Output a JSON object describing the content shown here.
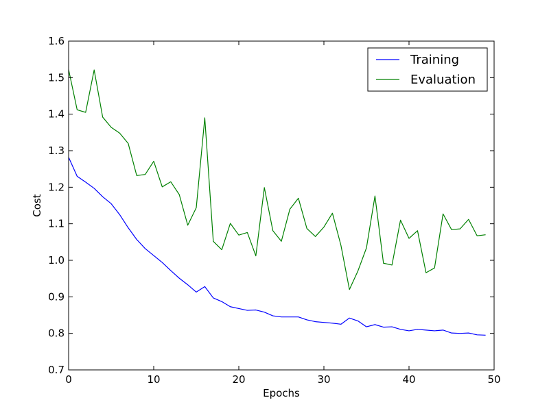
{
  "chart_data": {
    "type": "line",
    "title": "",
    "xlabel": "Epochs",
    "ylabel": "Cost",
    "xlim": [
      0,
      50
    ],
    "ylim": [
      0.7,
      1.6
    ],
    "xticks": [
      "0",
      "10",
      "20",
      "30",
      "40",
      "50"
    ],
    "yticks": [
      "0.7",
      "0.8",
      "0.9",
      "1.0",
      "1.1",
      "1.2",
      "1.3",
      "1.4",
      "1.5",
      "1.6"
    ],
    "grid": false,
    "legend_position": "top-right",
    "x": [
      0,
      1,
      2,
      3,
      4,
      5,
      6,
      7,
      8,
      9,
      10,
      11,
      12,
      13,
      14,
      15,
      16,
      17,
      18,
      19,
      20,
      21,
      22,
      23,
      24,
      25,
      26,
      27,
      28,
      29,
      30,
      31,
      32,
      33,
      34,
      35,
      36,
      37,
      38,
      39,
      40,
      41,
      42,
      43,
      44,
      45,
      46,
      47,
      48,
      49
    ],
    "series": [
      {
        "name": "Training",
        "color": "#0000ff",
        "values": [
          1.282,
          1.23,
          1.214,
          1.197,
          1.174,
          1.155,
          1.125,
          1.089,
          1.057,
          1.032,
          1.013,
          0.994,
          0.972,
          0.951,
          0.933,
          0.913,
          0.928,
          0.897,
          0.887,
          0.873,
          0.868,
          0.863,
          0.864,
          0.858,
          0.848,
          0.845,
          0.845,
          0.845,
          0.837,
          0.832,
          0.83,
          0.828,
          0.825,
          0.842,
          0.834,
          0.818,
          0.824,
          0.817,
          0.818,
          0.811,
          0.807,
          0.811,
          0.809,
          0.807,
          0.809,
          0.801,
          0.8,
          0.801,
          0.796,
          0.795
        ]
      },
      {
        "name": "Evaluation",
        "color": "#008000",
        "values": [
          1.522,
          1.412,
          1.405,
          1.521,
          1.392,
          1.364,
          1.348,
          1.32,
          1.232,
          1.235,
          1.271,
          1.201,
          1.215,
          1.18,
          1.096,
          1.144,
          1.39,
          1.052,
          1.029,
          1.101,
          1.069,
          1.076,
          1.012,
          1.199,
          1.081,
          1.052,
          1.14,
          1.17,
          1.087,
          1.065,
          1.091,
          1.129,
          1.041,
          0.92,
          0.971,
          1.034,
          1.176,
          0.992,
          0.987,
          1.11,
          1.06,
          1.081,
          0.966,
          0.979,
          1.127,
          1.084,
          1.086,
          1.112,
          1.067,
          1.07
        ]
      }
    ]
  }
}
